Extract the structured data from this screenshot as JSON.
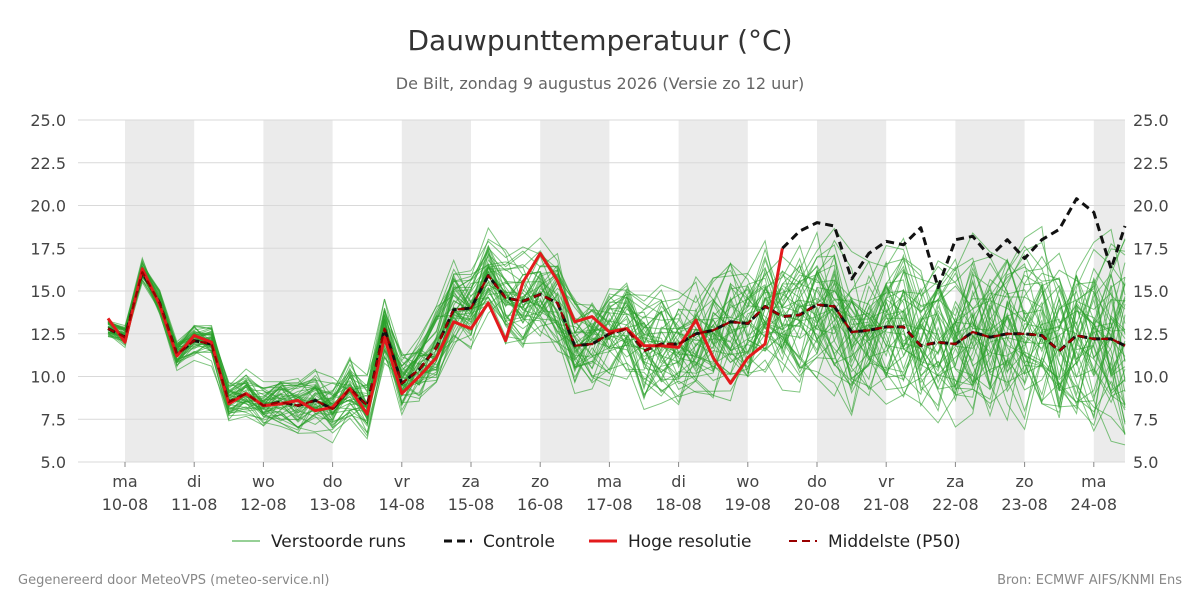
{
  "chart_data": {
    "type": "line",
    "title": "Dauwpunttemperatuur (°C)",
    "subtitle": "De Bilt, zondag  9 augustus 2026 (Versie zo 12 uur)",
    "ylim": [
      5.0,
      25.0
    ],
    "yticks": [
      "5.0",
      "7.5",
      "10.0",
      "12.5",
      "15.0",
      "17.5",
      "20.0",
      "22.5",
      "25.0"
    ],
    "xlim_days": [
      -0.25,
      14.5
    ],
    "x_ticks": [
      {
        "day": "ma",
        "date": "10-08"
      },
      {
        "day": "di",
        "date": "11-08"
      },
      {
        "day": "wo",
        "date": "12-08"
      },
      {
        "day": "do",
        "date": "13-08"
      },
      {
        "day": "vr",
        "date": "14-08"
      },
      {
        "day": "za",
        "date": "15-08"
      },
      {
        "day": "zo",
        "date": "16-08"
      },
      {
        "day": "ma",
        "date": "17-08"
      },
      {
        "day": "di",
        "date": "18-08"
      },
      {
        "day": "wo",
        "date": "19-08"
      },
      {
        "day": "do",
        "date": "20-08"
      },
      {
        "day": "vr",
        "date": "21-08"
      },
      {
        "day": "za",
        "date": "22-08"
      },
      {
        "day": "zo",
        "date": "23-08"
      },
      {
        "day": "ma",
        "date": "24-08"
      }
    ],
    "shaded_days": [
      0,
      2,
      4,
      6,
      8,
      10,
      12,
      14
    ],
    "colors": {
      "ensemble": "#2ca02c",
      "control": "#111111",
      "hires": "#e31a1c",
      "median": "#990000",
      "shade": "#ebebeb",
      "grid": "#d9d9d9"
    },
    "ensemble_members": 50,
    "series": [
      {
        "name": "Controle",
        "x": [
          -0.25,
          0,
          0.25,
          0.5,
          0.75,
          1,
          1.25,
          1.5,
          1.75,
          2,
          2.25,
          2.5,
          2.75,
          3,
          3.25,
          3.5,
          3.75,
          4,
          4.25,
          4.5,
          4.75,
          5,
          5.25,
          5.5,
          5.75,
          6,
          6.25,
          6.5,
          6.75,
          7,
          7.25,
          7.5,
          7.75,
          8,
          8.25,
          8.5,
          8.75,
          9,
          9.25,
          9.5,
          9.75,
          10,
          10.25,
          10.5,
          10.75,
          11,
          11.25,
          11.5,
          11.75,
          12,
          12.25,
          12.5,
          12.75,
          13,
          13.25,
          13.5,
          13.75,
          14,
          14.25,
          14.5
        ],
        "y": [
          12.8,
          12.3,
          16.1,
          14.3,
          11.3,
          12.1,
          11.9,
          8.5,
          9.0,
          8.3,
          8.5,
          8.3,
          8.6,
          8.1,
          9.3,
          8.3,
          12.8,
          9.6,
          10.4,
          11.7,
          13.9,
          14.0,
          15.9,
          14.6,
          14.4,
          14.8,
          14.3,
          11.8,
          11.9,
          12.5,
          12.8,
          11.5,
          11.9,
          11.9,
          12.5,
          12.7,
          13.2,
          13.1,
          14.1,
          13.5,
          13.6,
          14.2,
          14.1,
          12.6,
          12.7,
          12.9,
          12.9,
          11.8,
          12.0,
          11.9,
          12.6,
          12.3,
          12.5,
          12.5,
          12.4,
          11.5,
          12.4,
          12.2,
          12.2,
          11.8
        ]
      },
      {
        "name": "Hoge resolutie",
        "x": [
          -0.25,
          0,
          0.25,
          0.5,
          0.75,
          1,
          1.25,
          1.5,
          1.75,
          2,
          2.25,
          2.5,
          2.75,
          3,
          3.25,
          3.5,
          3.75,
          4,
          4.25,
          4.5,
          4.75,
          5,
          5.25,
          5.5,
          5.75,
          6,
          6.25,
          6.5,
          6.75,
          7,
          7.25,
          7.5,
          7.75,
          8,
          8.25,
          8.5,
          8.75,
          9,
          9.25,
          9.5
        ],
        "y": [
          13.4,
          12.0,
          16.3,
          14.2,
          11.2,
          12.4,
          12.0,
          8.4,
          9.0,
          8.3,
          8.4,
          8.6,
          8.0,
          8.2,
          9.3,
          7.8,
          12.3,
          9.0,
          10.0,
          11.1,
          13.2,
          12.8,
          14.3,
          12.1,
          15.5,
          17.2,
          15.6,
          13.2,
          13.5,
          12.6,
          12.8,
          11.8,
          11.8,
          11.7,
          13.3,
          11.1,
          9.6,
          11.1,
          11.9,
          17.5
        ]
      },
      {
        "name": "Middelste (P50)",
        "x": [
          -0.25,
          0,
          0.25,
          0.5,
          0.75,
          1,
          1.25,
          1.5,
          1.75,
          2,
          2.25,
          2.5,
          2.75,
          3,
          3.25,
          3.5,
          3.75,
          4,
          4.25,
          4.5,
          4.75,
          5,
          5.25,
          5.5,
          5.75,
          6,
          6.25,
          6.5,
          6.75,
          7,
          7.25,
          7.5,
          7.75,
          8,
          8.25,
          8.5,
          8.75,
          9,
          9.25,
          9.5,
          9.75,
          10,
          10.25,
          10.5,
          10.75,
          11,
          11.25,
          11.5,
          11.75,
          12,
          12.25,
          12.5,
          12.75,
          13,
          13.25,
          13.5,
          13.75,
          14,
          14.25,
          14.5
        ],
        "y": [
          12.8,
          12.3,
          16.1,
          14.3,
          11.3,
          12.1,
          11.9,
          8.5,
          9.0,
          8.3,
          8.5,
          8.3,
          8.6,
          8.1,
          9.3,
          8.3,
          12.8,
          9.6,
          10.4,
          11.7,
          13.9,
          14.0,
          15.9,
          14.6,
          14.4,
          14.8,
          14.3,
          11.8,
          11.9,
          12.5,
          12.8,
          11.5,
          11.9,
          11.9,
          12.5,
          12.7,
          13.2,
          13.1,
          14.1,
          13.5,
          13.6,
          14.2,
          14.1,
          12.6,
          12.7,
          12.9,
          12.9,
          11.8,
          12.0,
          11.9,
          12.6,
          12.3,
          12.5,
          12.5,
          12.4,
          11.5,
          12.4,
          12.2,
          12.2,
          11.8
        ]
      },
      {
        "name": "Controle",
        "x": [
          9.5,
          9.75,
          10,
          10.25,
          10.5,
          10.75,
          11,
          11.25,
          11.5,
          11.75,
          12,
          12.25,
          12.5,
          12.75,
          13,
          13.25,
          13.5,
          13.75,
          14,
          14.25,
          14.5
        ],
        "y": [
          17.5,
          18.5,
          19.0,
          18.8,
          15.7,
          17.2,
          17.9,
          17.7,
          18.7,
          15.2,
          18.0,
          18.2,
          17.0,
          18.0,
          16.9,
          18.0,
          18.6,
          20.4,
          19.6,
          16.3,
          18.8
        ]
      }
    ],
    "legend": [
      {
        "label": "Verstoorde runs",
        "style": "thin",
        "color": "#2ca02c"
      },
      {
        "label": "Controle",
        "style": "dashed",
        "color": "#111111"
      },
      {
        "label": "Hoge resolutie",
        "style": "solid",
        "color": "#e31a1c"
      },
      {
        "label": "Middelste (P50)",
        "style": "dashed",
        "color": "#990000"
      }
    ]
  },
  "footer": {
    "left": "Gegenereerd door MeteoVPS (meteo-service.nl)",
    "right": "Bron: ECMWF AIFS/KNMI Ens"
  }
}
